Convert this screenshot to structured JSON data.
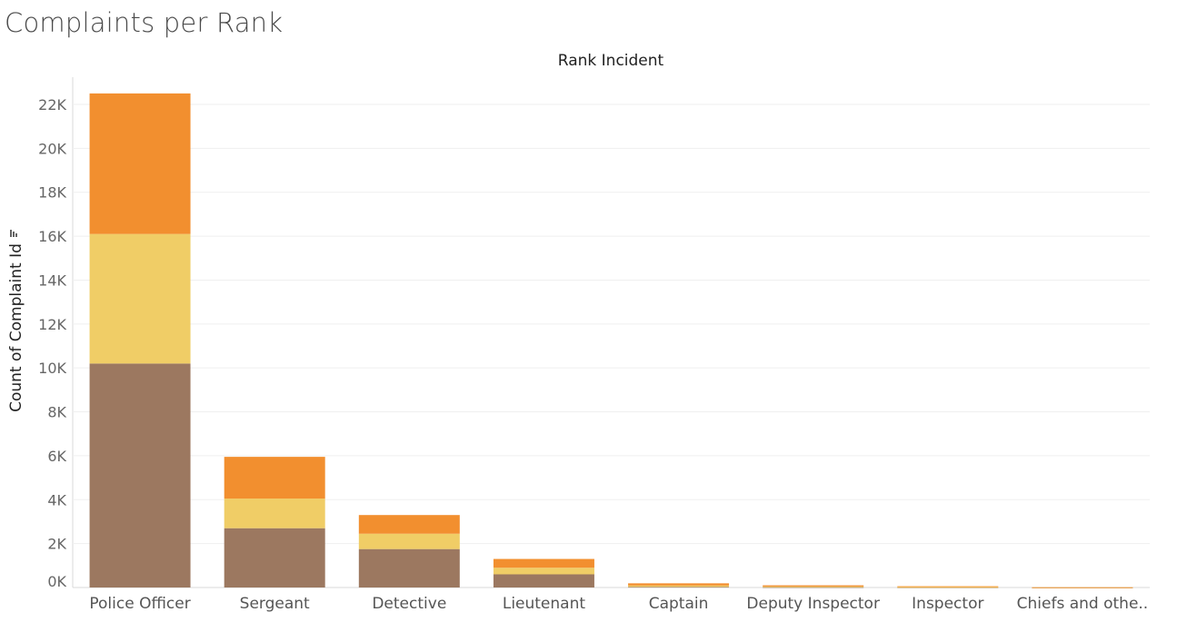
{
  "page": {
    "title": "Complaints per Rank"
  },
  "chart_data": {
    "type": "bar",
    "stacked": true,
    "title": "",
    "header": "Rank Incident",
    "xlabel": "",
    "ylabel": "Count of Complaint Id",
    "ylabel_icon": "sort-descending-icon",
    "ylim": [
      0,
      22500
    ],
    "yticks": [
      0,
      2000,
      4000,
      6000,
      8000,
      10000,
      12000,
      14000,
      16000,
      18000,
      20000,
      22000
    ],
    "ytick_labels": [
      "0K",
      "2K",
      "4K",
      "6K",
      "8K",
      "10K",
      "12K",
      "14K",
      "16K",
      "18K",
      "20K",
      "22K"
    ],
    "categories": [
      "Police Officer",
      "Sergeant",
      "Detective",
      "Lieutenant",
      "Captain",
      "Deputy Inspector",
      "Inspector",
      "Chiefs and othe.."
    ],
    "series": [
      {
        "color": "#9c7860",
        "values": [
          10200,
          2700,
          1750,
          600,
          30,
          15,
          8,
          2
        ]
      },
      {
        "color": "#f0cd66",
        "values": [
          5900,
          1350,
          700,
          300,
          60,
          30,
          15,
          3
        ]
      },
      {
        "color": "#f28f2f",
        "values": [
          6400,
          1900,
          850,
          400,
          100,
          55,
          35,
          5
        ]
      }
    ],
    "grid": true,
    "legend": "none"
  }
}
